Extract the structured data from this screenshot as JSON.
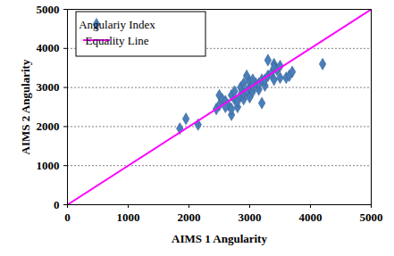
{
  "chart_data": {
    "type": "scatter",
    "x_label": "AIMS 1 Angularity",
    "y_label": "AIMS 2 Angularity",
    "xlim": [
      0,
      5000
    ],
    "ylim": [
      0,
      5000
    ],
    "xticks": [
      0,
      1000,
      2000,
      3000,
      4000,
      5000
    ],
    "yticks": [
      0,
      1000,
      2000,
      3000,
      4000,
      5000
    ],
    "grid": "y",
    "legend": "top-left",
    "series": [
      {
        "name": "Angulariy Index",
        "type": "scatter",
        "marker": "diamond",
        "color": "#4a7ebb",
        "x": [
          1850,
          1950,
          2150,
          2450,
          2500,
          2500,
          2550,
          2600,
          2650,
          2700,
          2700,
          2700,
          2750,
          2750,
          2800,
          2800,
          2850,
          2850,
          2900,
          2900,
          2900,
          2950,
          2950,
          3000,
          3000,
          3000,
          3050,
          3050,
          3100,
          3150,
          3150,
          3200,
          3200,
          3250,
          3250,
          3300,
          3300,
          3350,
          3400,
          3400,
          3400,
          3450,
          3500,
          3500,
          3600,
          3650,
          3700,
          4200,
          3050,
          2600
        ],
        "values": [
          1950,
          2200,
          2050,
          2450,
          2550,
          2800,
          2700,
          2650,
          2550,
          2300,
          2450,
          2800,
          2700,
          2900,
          2500,
          2650,
          2800,
          3000,
          2700,
          2850,
          3100,
          3300,
          2900,
          2750,
          3000,
          3150,
          2900,
          3050,
          3100,
          2950,
          3100,
          3200,
          2600,
          3050,
          3200,
          3700,
          3300,
          3350,
          3600,
          3500,
          3200,
          3450,
          3550,
          3250,
          3250,
          3300,
          3400,
          3600,
          3200,
          2500
        ]
      },
      {
        "name": "Equality Line",
        "type": "line",
        "color": "#ff00ff",
        "x": [
          0,
          5000
        ],
        "values": [
          0,
          5000
        ]
      }
    ]
  }
}
